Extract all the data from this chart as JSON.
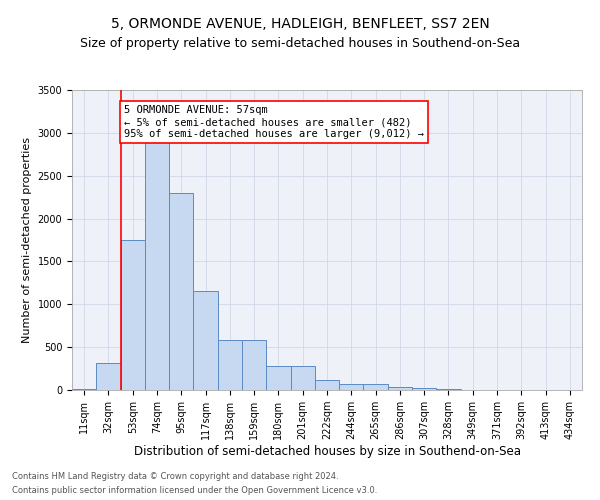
{
  "title1": "5, ORMONDE AVENUE, HADLEIGH, BENFLEET, SS7 2EN",
  "title2": "Size of property relative to semi-detached houses in Southend-on-Sea",
  "xlabel": "Distribution of semi-detached houses by size in Southend-on-Sea",
  "ylabel": "Number of semi-detached properties",
  "footnote1": "Contains HM Land Registry data © Crown copyright and database right 2024.",
  "footnote2": "Contains public sector information licensed under the Open Government Licence v3.0.",
  "bin_labels": [
    "11sqm",
    "32sqm",
    "53sqm",
    "74sqm",
    "95sqm",
    "117sqm",
    "138sqm",
    "159sqm",
    "180sqm",
    "201sqm",
    "222sqm",
    "244sqm",
    "265sqm",
    "286sqm",
    "307sqm",
    "328sqm",
    "349sqm",
    "371sqm",
    "392sqm",
    "413sqm",
    "434sqm"
  ],
  "bar_values": [
    10,
    320,
    1750,
    3000,
    2300,
    1150,
    580,
    580,
    285,
    285,
    120,
    75,
    75,
    30,
    20,
    8,
    5,
    5,
    5,
    5,
    5
  ],
  "bar_color": "#c6d9f0",
  "bar_edge_color": "#5a8ac6",
  "red_line_x": 1.5,
  "annotation_text": "5 ORMONDE AVENUE: 57sqm\n← 5% of semi-detached houses are smaller (482)\n95% of semi-detached houses are larger (9,012) →",
  "annotation_box_color": "white",
  "annotation_box_edge": "red",
  "ylim": [
    0,
    3500
  ],
  "yticks": [
    0,
    500,
    1000,
    1500,
    2000,
    2500,
    3000,
    3500
  ],
  "grid_color": "#d0d8e8",
  "background_color": "#eef2f8",
  "title1_fontsize": 10,
  "title2_fontsize": 9,
  "xlabel_fontsize": 8.5,
  "ylabel_fontsize": 8,
  "tick_fontsize": 7,
  "annotation_fontsize": 7.5,
  "footnote_fontsize": 6,
  "footnote_color": "#555555"
}
